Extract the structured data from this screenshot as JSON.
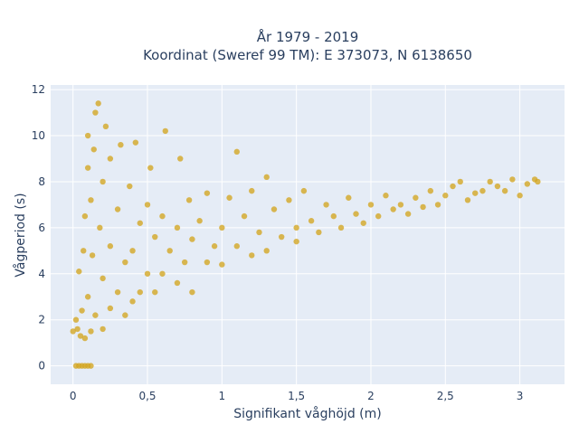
{
  "chart_data": {
    "type": "scatter",
    "title_lines": [
      "År 1979 - 2019",
      "Koordinat (Sweref 99 TM): E 373073, N 6138650"
    ],
    "xlabel": "Signifikant våghöjd (m)",
    "ylabel": "Vågperiod (s)",
    "xlim": [
      -0.15,
      3.3
    ],
    "ylim": [
      -0.8,
      12.2
    ],
    "x_ticks": [
      0,
      0.5,
      1,
      1.5,
      2,
      2.5,
      3
    ],
    "x_tick_labels": [
      "0",
      "0,5",
      "1",
      "1,5",
      "2",
      "2,5",
      "3"
    ],
    "y_ticks": [
      0,
      2,
      4,
      6,
      8,
      10,
      12
    ],
    "y_tick_labels": [
      "0",
      "2",
      "4",
      "6",
      "8",
      "10",
      "12"
    ],
    "grid": true,
    "colors": {
      "marker": "#d4a520",
      "plot_background": "#e5ecf6",
      "grid": "#ffffff",
      "text": "#2a3f5f"
    },
    "series": [
      {
        "points": [
          [
            0.0,
            1.5
          ],
          [
            0.02,
            2.0
          ],
          [
            0.03,
            1.6
          ],
          [
            0.04,
            4.1
          ],
          [
            0.05,
            1.3
          ],
          [
            0.06,
            2.4
          ],
          [
            0.07,
            5.0
          ],
          [
            0.08,
            1.2
          ],
          [
            0.08,
            6.5
          ],
          [
            0.1,
            3.0
          ],
          [
            0.1,
            8.6
          ],
          [
            0.1,
            10.0
          ],
          [
            0.12,
            1.5
          ],
          [
            0.12,
            7.2
          ],
          [
            0.13,
            4.8
          ],
          [
            0.14,
            9.4
          ],
          [
            0.15,
            2.2
          ],
          [
            0.15,
            11.0
          ],
          [
            0.17,
            11.4
          ],
          [
            0.18,
            6.0
          ],
          [
            0.2,
            1.6
          ],
          [
            0.2,
            3.8
          ],
          [
            0.2,
            8.0
          ],
          [
            0.22,
            10.4
          ],
          [
            0.25,
            2.5
          ],
          [
            0.25,
            5.2
          ],
          [
            0.25,
            9.0
          ],
          [
            0.3,
            3.2
          ],
          [
            0.3,
            6.8
          ],
          [
            0.32,
            9.6
          ],
          [
            0.35,
            2.2
          ],
          [
            0.35,
            4.5
          ],
          [
            0.38,
            7.8
          ],
          [
            0.4,
            5.0
          ],
          [
            0.4,
            2.8
          ],
          [
            0.42,
            9.7
          ],
          [
            0.45,
            6.2
          ],
          [
            0.45,
            3.2
          ],
          [
            0.5,
            4.0
          ],
          [
            0.5,
            7.0
          ],
          [
            0.52,
            8.6
          ],
          [
            0.55,
            3.2
          ],
          [
            0.55,
            5.6
          ],
          [
            0.6,
            6.5
          ],
          [
            0.6,
            4.0
          ],
          [
            0.62,
            10.2
          ],
          [
            0.65,
            5.0
          ],
          [
            0.7,
            3.6
          ],
          [
            0.7,
            6.0
          ],
          [
            0.72,
            9.0
          ],
          [
            0.75,
            4.5
          ],
          [
            0.78,
            7.2
          ],
          [
            0.8,
            5.5
          ],
          [
            0.8,
            3.2
          ],
          [
            0.85,
            6.3
          ],
          [
            0.9,
            4.5
          ],
          [
            0.9,
            7.5
          ],
          [
            0.95,
            5.2
          ],
          [
            1.0,
            6.0
          ],
          [
            1.0,
            4.4
          ],
          [
            1.05,
            7.3
          ],
          [
            1.1,
            9.3
          ],
          [
            1.1,
            5.2
          ],
          [
            1.15,
            6.5
          ],
          [
            1.2,
            4.8
          ],
          [
            1.2,
            7.6
          ],
          [
            1.25,
            5.8
          ],
          [
            1.3,
            8.2
          ],
          [
            1.3,
            5.0
          ],
          [
            1.35,
            6.8
          ],
          [
            1.4,
            5.6
          ],
          [
            1.45,
            7.2
          ],
          [
            1.5,
            6.0
          ],
          [
            1.5,
            5.4
          ],
          [
            1.55,
            7.6
          ],
          [
            1.6,
            6.3
          ],
          [
            1.65,
            5.8
          ],
          [
            1.7,
            7.0
          ],
          [
            1.75,
            6.5
          ],
          [
            1.8,
            6.0
          ],
          [
            1.85,
            7.3
          ],
          [
            1.9,
            6.6
          ],
          [
            1.95,
            6.2
          ],
          [
            2.0,
            7.0
          ],
          [
            2.05,
            6.5
          ],
          [
            2.1,
            7.4
          ],
          [
            2.15,
            6.8
          ],
          [
            2.2,
            7.0
          ],
          [
            2.25,
            6.6
          ],
          [
            2.3,
            7.3
          ],
          [
            2.35,
            6.9
          ],
          [
            2.4,
            7.6
          ],
          [
            2.45,
            7.0
          ],
          [
            2.5,
            7.4
          ],
          [
            2.55,
            7.8
          ],
          [
            2.6,
            8.0
          ],
          [
            2.65,
            7.2
          ],
          [
            2.7,
            7.5
          ],
          [
            2.75,
            7.6
          ],
          [
            2.8,
            8.0
          ],
          [
            2.85,
            7.8
          ],
          [
            2.9,
            7.6
          ],
          [
            2.95,
            8.1
          ],
          [
            3.0,
            7.4
          ],
          [
            3.05,
            7.9
          ],
          [
            3.1,
            8.1
          ],
          [
            3.12,
            8.0
          ],
          [
            0.02,
            0.0
          ],
          [
            0.04,
            0.0
          ],
          [
            0.06,
            0.0
          ],
          [
            0.08,
            0.0
          ],
          [
            0.1,
            0.0
          ],
          [
            0.12,
            0.0
          ]
        ]
      }
    ]
  }
}
